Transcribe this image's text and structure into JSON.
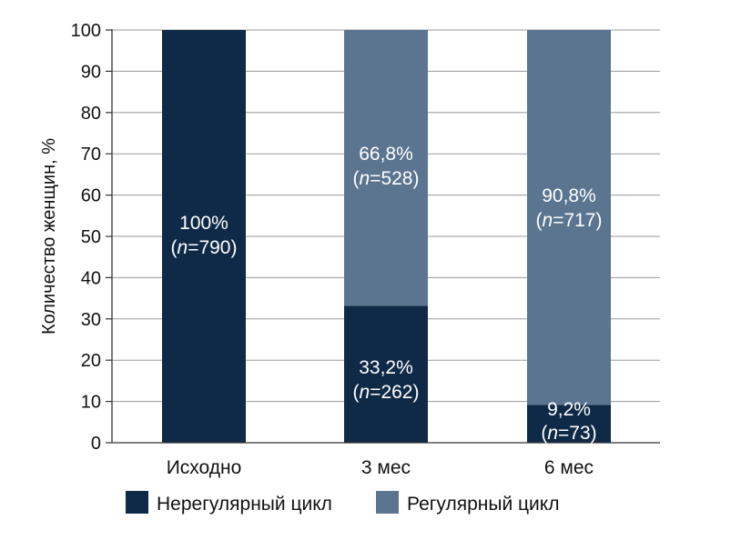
{
  "chart_data": {
    "type": "bar",
    "stacked": true,
    "categories": [
      "Исходно",
      "3 мес",
      "6 мес"
    ],
    "ylabel": "Количество женщин, %",
    "ylim": [
      0,
      100
    ],
    "yticks": [
      0,
      10,
      20,
      30,
      40,
      50,
      60,
      70,
      80,
      90,
      100
    ],
    "grid": true,
    "legend_position": "bottom",
    "series": [
      {
        "name": "Нерегулярный цикл",
        "color": "#0f2a47",
        "values": [
          100,
          33.2,
          9.2
        ],
        "pct_labels": [
          "100%",
          "33,2%",
          "9,2%"
        ],
        "n_labels": [
          "790",
          "262",
          "73"
        ]
      },
      {
        "name": "Регулярный цикл",
        "color": "#5b7590",
        "values": [
          0,
          66.8,
          90.8
        ],
        "pct_labels": [
          "",
          "66,8%",
          "90,8%"
        ],
        "n_labels": [
          "",
          "528",
          "717"
        ]
      }
    ]
  }
}
